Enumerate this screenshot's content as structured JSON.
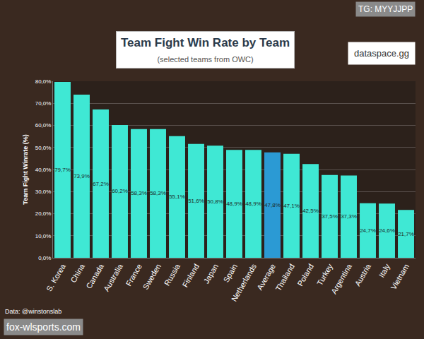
{
  "chart_data": {
    "type": "bar",
    "title": "Team Fight Win Rate by Team",
    "subtitle": "(selected teams from OWC)",
    "y_label": "Team Fight Winrate (%)",
    "categories": [
      "S. Korea",
      "China",
      "Canada",
      "Australia",
      "France",
      "Sweden",
      "Russia",
      "Finland",
      "Japan",
      "Spain",
      "Netherlands",
      "Average",
      "Thailand",
      "Poland",
      "Turkey",
      "Argentina",
      "Austria",
      "Italy",
      "Vietnam"
    ],
    "values": [
      79.7,
      73.9,
      67.2,
      60.2,
      58.3,
      58.3,
      55.1,
      51.6,
      50.8,
      48.9,
      48.9,
      47.8,
      47.1,
      42.5,
      37.5,
      37.3,
      24.7,
      24.6,
      21.7
    ],
    "value_labels": [
      "79,7%",
      "73,9%",
      "67,2%",
      "60,2%",
      "58,3%",
      "58,3%",
      "55,1%",
      "51,6%",
      "50,8%",
      "48,9%",
      "48,9%",
      "47,8%",
      "47,1%",
      "42,5%",
      "37,5%",
      "37,3%",
      "24,7%",
      "24,6%",
      "21,7%"
    ],
    "colors": [
      "#3fe8d4",
      "#3fe8d4",
      "#3fe8d4",
      "#3fe8d4",
      "#3fe8d4",
      "#3fe8d4",
      "#3fe8d4",
      "#3fe8d4",
      "#3fe8d4",
      "#3fe8d4",
      "#3fe8d4",
      "#2b9ad4",
      "#3fe8d4",
      "#3fe8d4",
      "#3fe8d4",
      "#3fe8d4",
      "#3fe8d4",
      "#3fe8d4",
      "#3fe8d4"
    ],
    "ylim": [
      0,
      80
    ],
    "yticks": [
      {
        "value": 0,
        "label": "0,0%"
      },
      {
        "value": 10,
        "label": "10,0%"
      },
      {
        "value": 20,
        "label": "20,0%"
      },
      {
        "value": 30,
        "label": "30,0%"
      },
      {
        "value": 40,
        "label": "40,0%"
      },
      {
        "value": 50,
        "label": "50,0%"
      },
      {
        "value": 60,
        "label": "60,0%"
      },
      {
        "value": 70,
        "label": "70,0%"
      },
      {
        "value": 80,
        "label": "80,0%"
      }
    ],
    "grid": true,
    "data_labels": true,
    "annotations": [
      "dataspace.gg",
      "Data: @winstonslab",
      "TG: MYYJJPP",
      "fox-wlsports.com"
    ]
  }
}
